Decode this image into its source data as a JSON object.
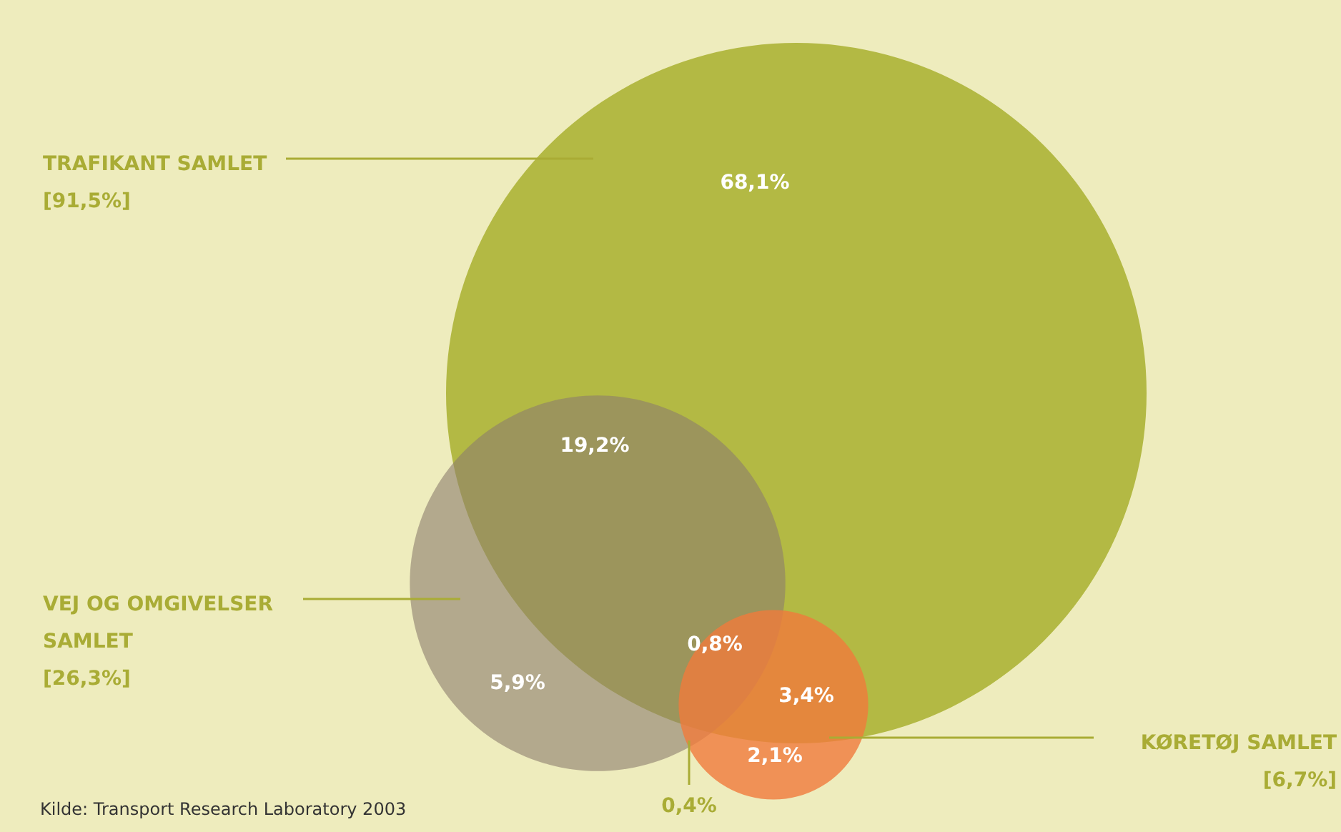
{
  "chart_data": {
    "type": "other",
    "categories": [
      "TRAFIKANT SAMLET",
      "VEJ OG OMGIVELSER SAMLET",
      "KØRETØJ SAMLET"
    ],
    "values": [
      91.5,
      26.3,
      6.7
    ],
    "value_labels": [
      "[91,5%]",
      "[26,3%]",
      "[6,7%]"
    ],
    "colors": [
      "#b3b944",
      "#8c7d6c",
      "#f07a3c"
    ],
    "annotations": [
      "68,1%",
      "19,2%",
      "5,9%",
      "0,8%",
      "3,4%",
      "2,1%",
      "0,4%",
      "Kilde: Transport Research Laboratory 2003"
    ]
  }
}
